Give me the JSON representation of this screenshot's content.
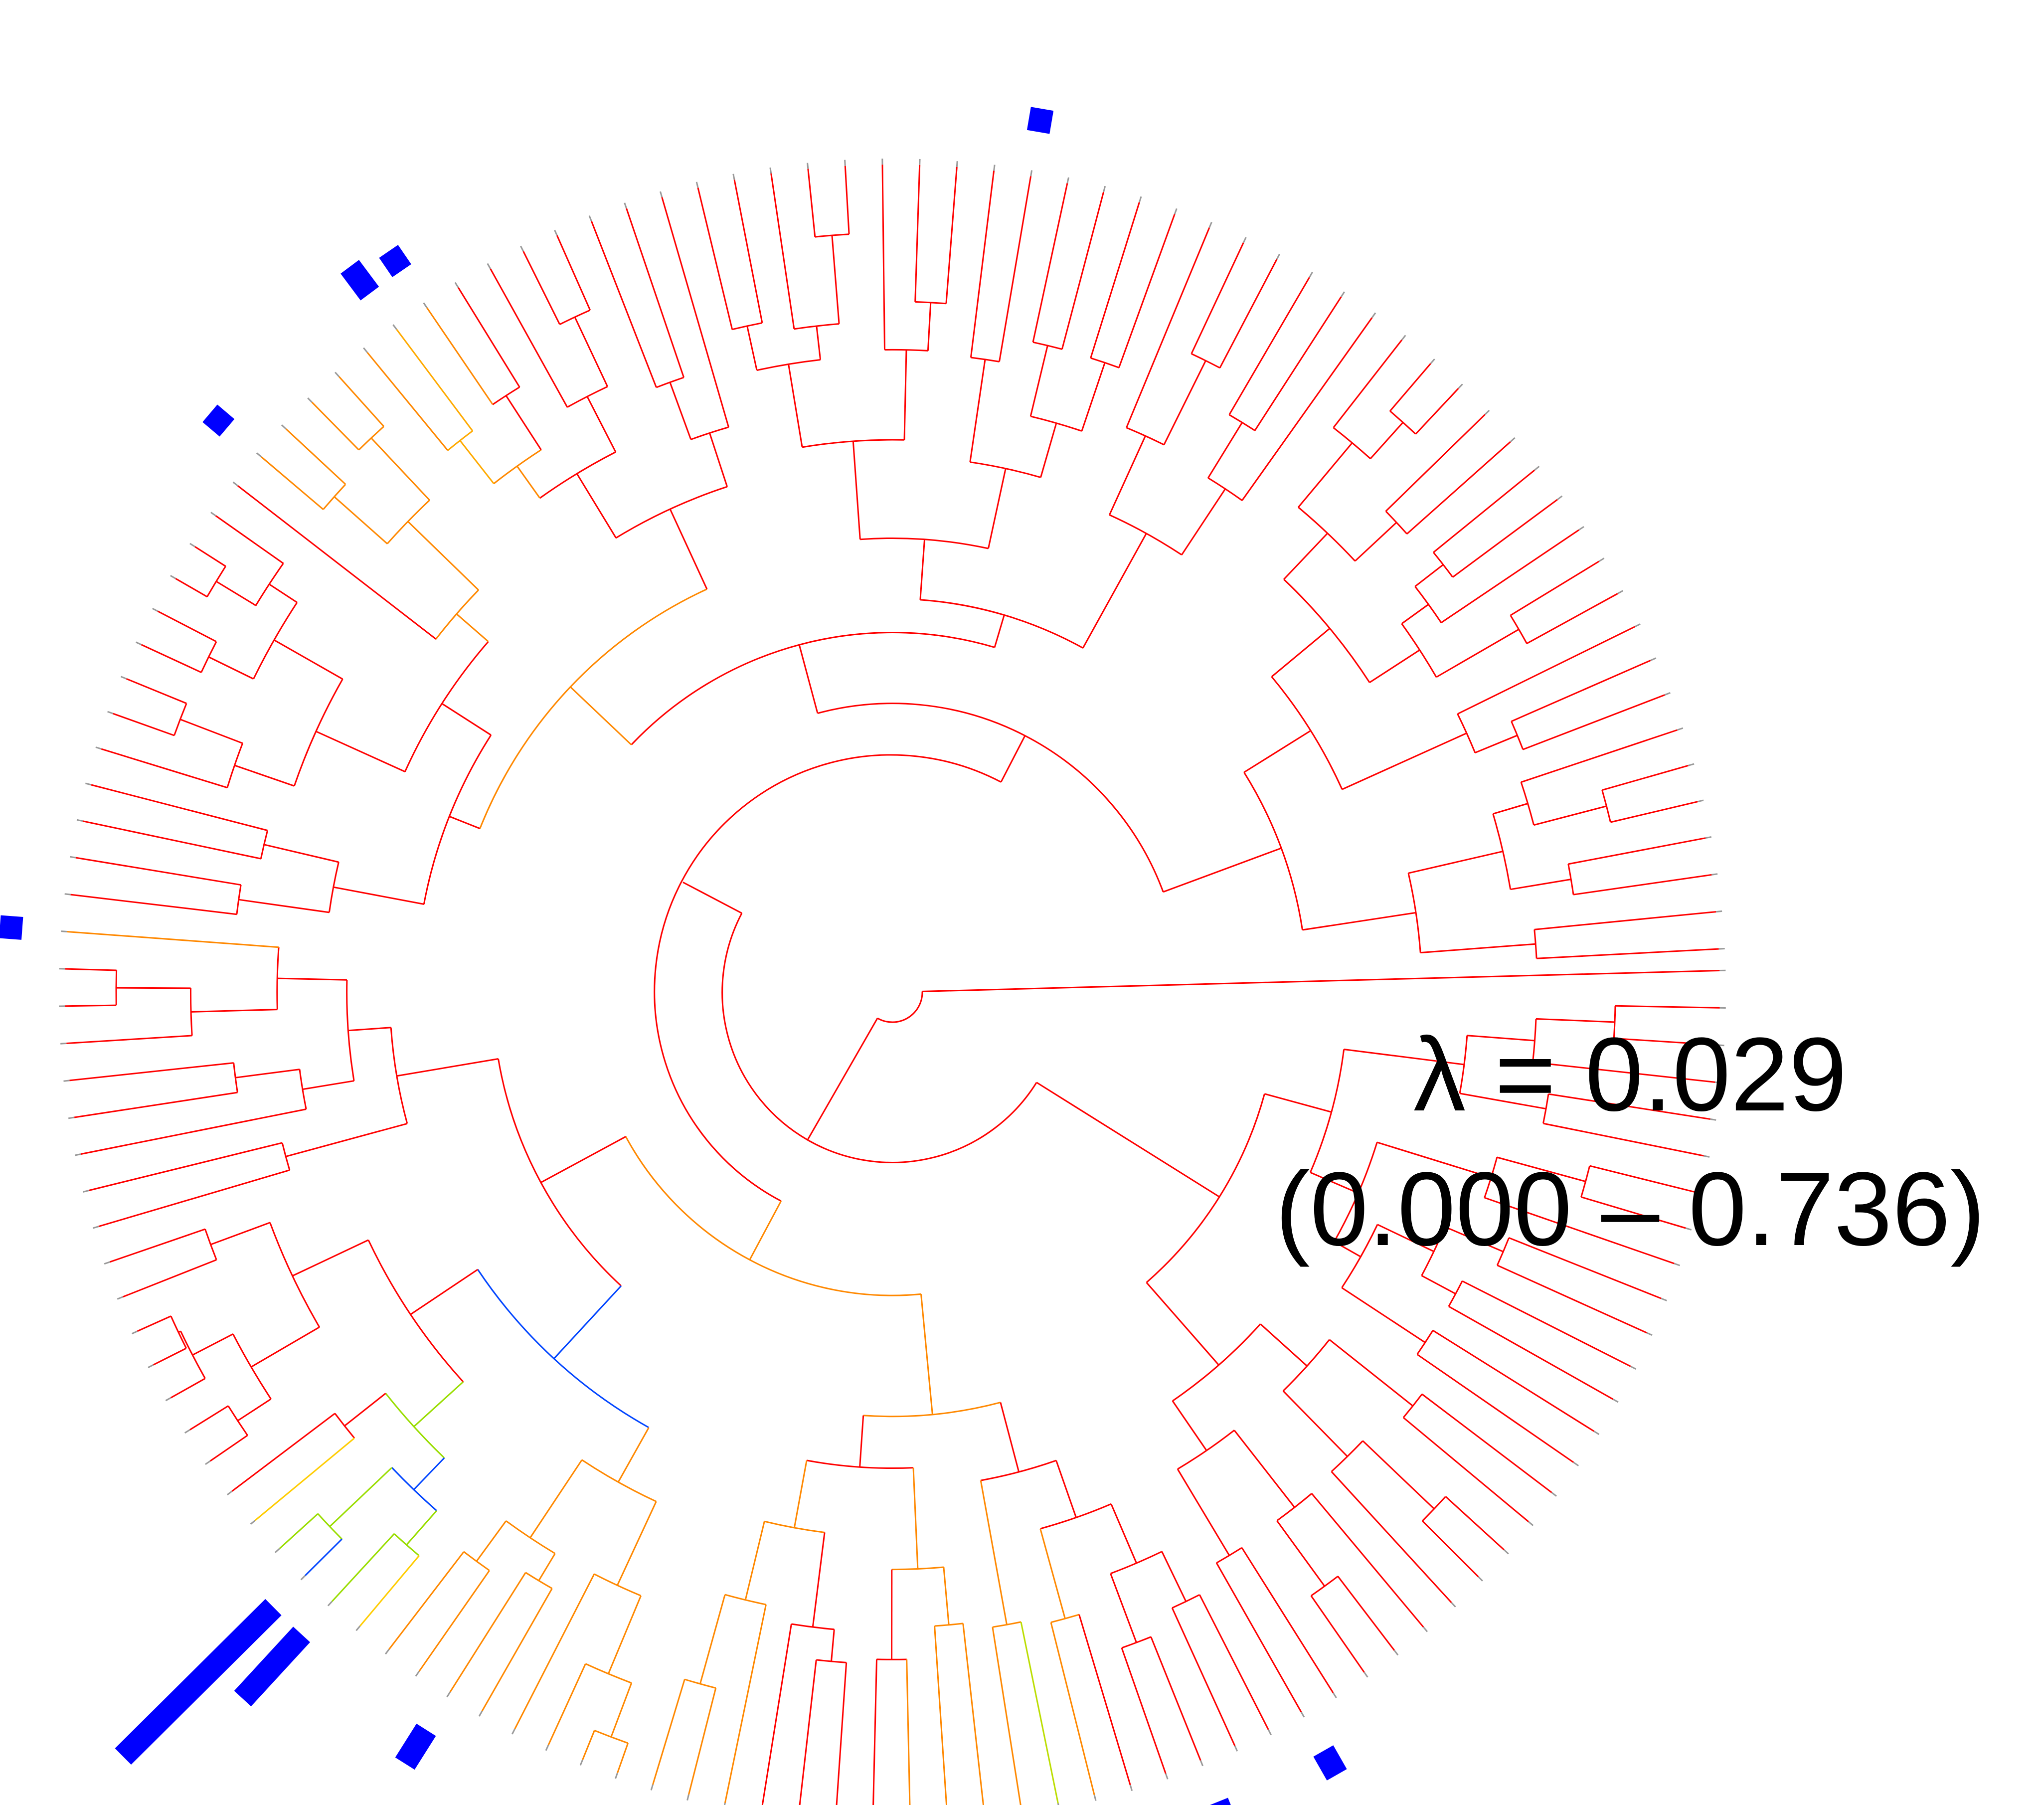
{
  "figure": {
    "lambda_line": "λ = 0.029",
    "ci_line": "(0.000 – 0.736)"
  },
  "tree": {
    "type": "circular phylogram",
    "branch_color_default": "#ff0000",
    "branch_color_scale": [
      "#ff0000",
      "#ff8800",
      "#ffee00",
      "#00dddd",
      "#0000ff"
    ],
    "tip_color": "#999999",
    "tip_count": 140,
    "bar_color": "#0000ff"
  },
  "trait_bars": [
    {
      "tip": 24,
      "value": 0.3
    },
    {
      "tip": 27,
      "value": 1.0
    },
    {
      "tip": 33,
      "value": 0.18
    },
    {
      "tip": 48,
      "value": 0.55
    },
    {
      "tip": 52,
      "value": 1.5
    },
    {
      "tip": 53,
      "value": 4.0
    },
    {
      "tip": 72,
      "value": 0.2
    },
    {
      "tip": 86,
      "value": 0.2
    },
    {
      "tip": 91,
      "value": 0.42
    },
    {
      "tip": 92,
      "value": 0.22
    },
    {
      "tip": 109,
      "value": 0.22
    }
  ],
  "highlight_clades": [
    {
      "from": 50,
      "to": 55,
      "color": "#ffcc00"
    },
    {
      "from": 52,
      "to": 54,
      "color": "#99dd00"
    },
    {
      "from": 53,
      "to": 53,
      "color": "#0044ff"
    },
    {
      "from": 40,
      "to": 50,
      "color": "#ff8800"
    },
    {
      "from": 30,
      "to": 35,
      "color": "#ff8800"
    },
    {
      "from": 31,
      "to": 31,
      "color": "#bbdd00"
    },
    {
      "from": 86,
      "to": 92,
      "color": "#ff8800"
    },
    {
      "from": 91,
      "to": 91,
      "color": "#ffaa00"
    },
    {
      "from": 72,
      "to": 72,
      "color": "#ff8800"
    }
  ]
}
